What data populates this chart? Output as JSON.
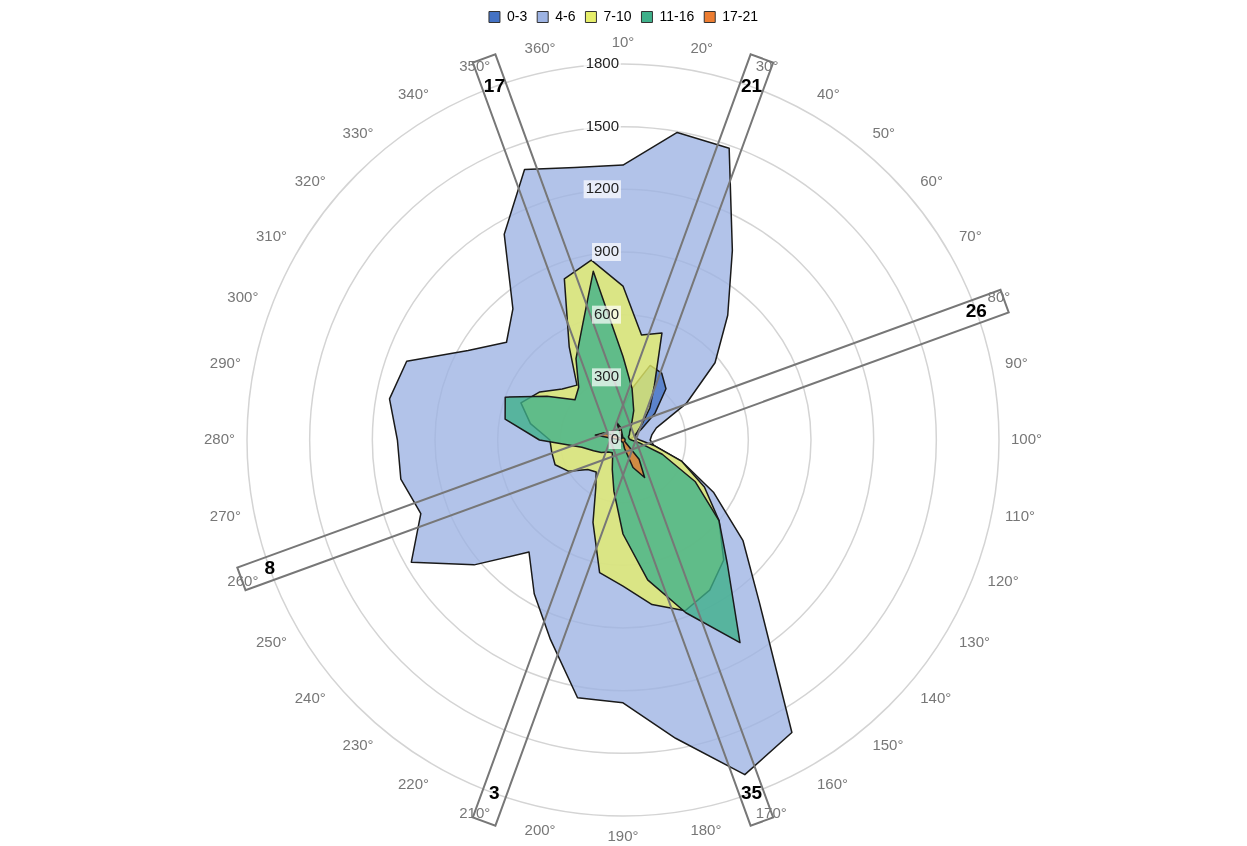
{
  "chart_data": {
    "type": "radar",
    "categories": [
      "10°",
      "20°",
      "30°",
      "40°",
      "50°",
      "60°",
      "70°",
      "80°",
      "90°",
      "100°",
      "110°",
      "120°",
      "130°",
      "140°",
      "150°",
      "160°",
      "170°",
      "180°",
      "190°",
      "200°",
      "210°",
      "220°",
      "230°",
      "240°",
      "250°",
      "260°",
      "270°",
      "280°",
      "290°",
      "300°",
      "310°",
      "320°",
      "330°",
      "340°",
      "350°",
      "360°"
    ],
    "series": [
      {
        "name": "0-3",
        "color": "#4472c4",
        "values": [
          150,
          250,
          380,
          370,
          320,
          200,
          100,
          60,
          40,
          40,
          30,
          30,
          30,
          30,
          30,
          30,
          30,
          30,
          30,
          30,
          30,
          30,
          30,
          30,
          30,
          30,
          30,
          30,
          30,
          30,
          30,
          30,
          30,
          40,
          60,
          100
        ]
      },
      {
        "name": "4-6",
        "color": "#9db3e3",
        "values": [
          1316,
          1495,
          1486,
          1047,
          780,
          575,
          350,
          170,
          140,
          130,
          150,
          300,
          500,
          750,
          1016,
          1617,
          1705,
          1450,
          1258,
          1253,
          1016,
          850,
          700,
          930,
          1170,
          1030,
          1080,
          1080,
          1135,
          1102,
          856,
          728,
          820,
          1137,
          1378,
          1325
        ]
      },
      {
        "name": "7-10",
        "color": "#e6ee6a",
        "values": [
          737,
          510,
          545,
          300,
          200,
          120,
          80,
          60,
          60,
          80,
          150,
          300,
          450,
          600,
          750,
          830,
          870,
          800,
          700,
          645,
          420,
          260,
          200,
          220,
          300,
          346,
          346,
          350,
          450,
          520,
          460,
          380,
          343,
          515,
          821,
          874
        ]
      },
      {
        "name": "11-16",
        "color": "#3fb08a",
        "values": [
          400,
          250,
          150,
          80,
          50,
          40,
          30,
          30,
          30,
          40,
          80,
          200,
          400,
          600,
          778,
          1120,
          880,
          680,
          450,
          250,
          150,
          100,
          80,
          90,
          120,
          150,
          200,
          400,
          573,
          600,
          420,
          300,
          330,
          450,
          573,
          820
        ]
      },
      {
        "name": "17-21",
        "color": "#ed7d31",
        "values": [
          10,
          10,
          10,
          10,
          10,
          10,
          10,
          10,
          10,
          10,
          10,
          10,
          10,
          10,
          120,
          207,
          140,
          40,
          10,
          10,
          10,
          10,
          10,
          10,
          10,
          10,
          10,
          10,
          135,
          100,
          40,
          10,
          10,
          10,
          90,
          60
        ]
      }
    ],
    "ylim": [
      0,
      1800
    ],
    "yticks": [
      0,
      300,
      600,
      900,
      1200,
      1500,
      1800
    ],
    "grid": true,
    "legend": "top",
    "marker": "none",
    "annotations": [
      {
        "text": "17",
        "x": "350°"
      },
      {
        "text": "35",
        "x": "170°"
      },
      {
        "text": "21",
        "x": "30°"
      },
      {
        "text": "3",
        "x": "210°"
      },
      {
        "text": "26",
        "x": "80°"
      },
      {
        "text": "8",
        "x": "260°"
      }
    ]
  }
}
